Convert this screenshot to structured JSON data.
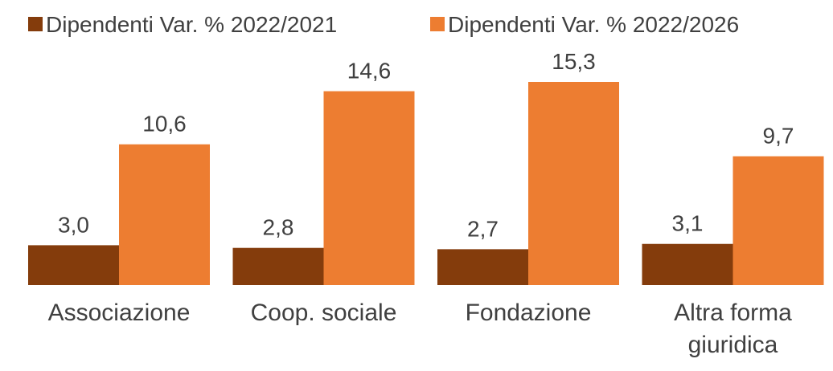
{
  "chart_data": {
    "type": "bar",
    "categories": [
      "Associazione",
      "Coop. sociale",
      "Fondazione",
      "Altra forma giuridica"
    ],
    "series": [
      {
        "name": "Dipendenti Var. % 2022/2021",
        "color": "#843c0c",
        "values": [
          3.0,
          2.8,
          2.7,
          3.1
        ],
        "value_labels": [
          "3,0",
          "2,8",
          "2,7",
          "3,1"
        ]
      },
      {
        "name": "Dipendenti Var. % 2022/2026",
        "color": "#ed7d31",
        "values": [
          10.6,
          14.6,
          15.3,
          9.7
        ],
        "value_labels": [
          "10,6",
          "14,6",
          "15,3",
          "9,7"
        ]
      }
    ],
    "legend": "top"
  }
}
